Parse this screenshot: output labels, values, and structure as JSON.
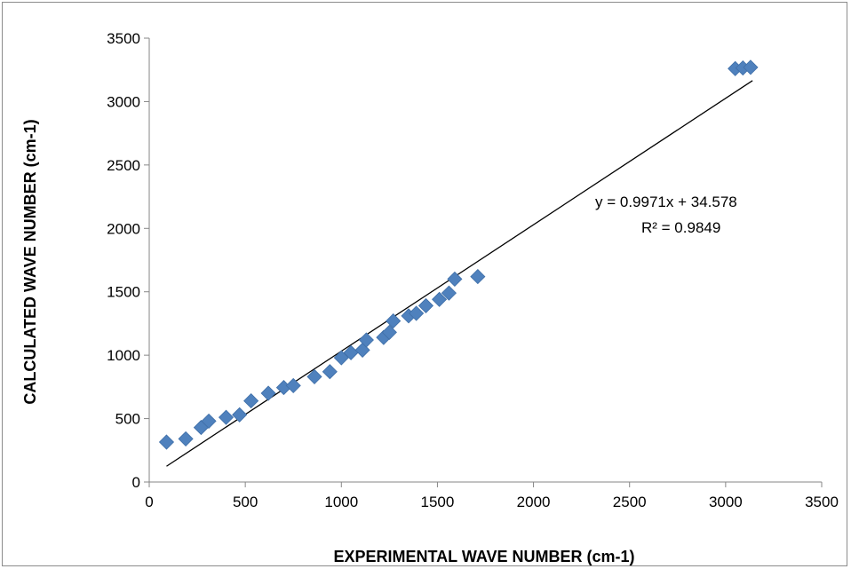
{
  "chart_data": {
    "type": "scatter",
    "xlabel": "EXPERIMENTAL WAVE NUMBER (cm-1)",
    "ylabel": "CALCULATED WAVE NUMBER (cm-1)",
    "xlim": [
      0,
      3500
    ],
    "ylim": [
      0,
      3500
    ],
    "x_ticks": [
      "0",
      "500",
      "1000",
      "1500",
      "2000",
      "2500",
      "3000",
      "3500"
    ],
    "y_ticks": [
      "0",
      "500",
      "1000",
      "1500",
      "2000",
      "2500",
      "3000",
      "3500"
    ],
    "grid": false,
    "legend": "none",
    "marker_color": "#4f81bd",
    "trendline": {
      "slope": 0.9971,
      "intercept": 34.578,
      "x_range": [
        90,
        3140
      ],
      "equation_label": "y = 0.9971x + 34.578",
      "r2_label": "R² = 0.9849"
    },
    "points": [
      {
        "x": 90,
        "y": 315
      },
      {
        "x": 190,
        "y": 340
      },
      {
        "x": 270,
        "y": 430
      },
      {
        "x": 310,
        "y": 480
      },
      {
        "x": 400,
        "y": 510
      },
      {
        "x": 470,
        "y": 530
      },
      {
        "x": 530,
        "y": 640
      },
      {
        "x": 620,
        "y": 700
      },
      {
        "x": 700,
        "y": 745
      },
      {
        "x": 750,
        "y": 760
      },
      {
        "x": 860,
        "y": 830
      },
      {
        "x": 940,
        "y": 870
      },
      {
        "x": 1000,
        "y": 980
      },
      {
        "x": 1050,
        "y": 1020
      },
      {
        "x": 1110,
        "y": 1040
      },
      {
        "x": 1130,
        "y": 1120
      },
      {
        "x": 1220,
        "y": 1140
      },
      {
        "x": 1250,
        "y": 1180
      },
      {
        "x": 1270,
        "y": 1270
      },
      {
        "x": 1350,
        "y": 1310
      },
      {
        "x": 1390,
        "y": 1330
      },
      {
        "x": 1440,
        "y": 1390
      },
      {
        "x": 1510,
        "y": 1440
      },
      {
        "x": 1560,
        "y": 1490
      },
      {
        "x": 1590,
        "y": 1600
      },
      {
        "x": 1710,
        "y": 1620
      },
      {
        "x": 3050,
        "y": 3260
      },
      {
        "x": 3090,
        "y": 3265
      },
      {
        "x": 3130,
        "y": 3270
      }
    ]
  }
}
